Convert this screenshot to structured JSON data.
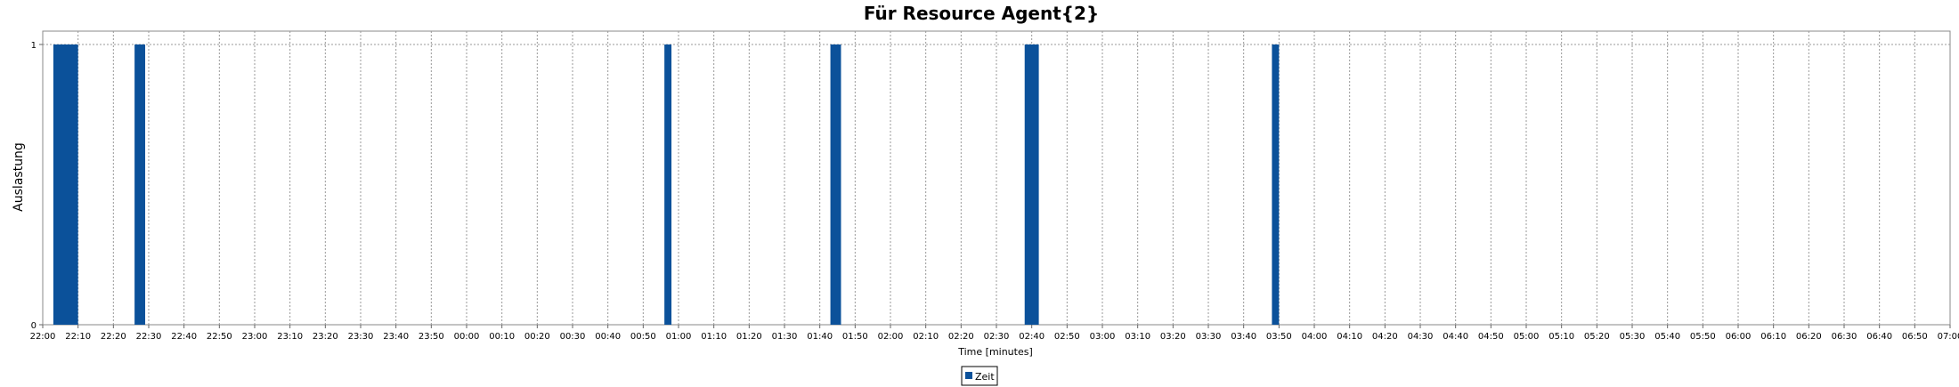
{
  "chart_data": {
    "type": "bar",
    "title": "Für Resource Agent{2}",
    "xlabel": "Time [minutes]",
    "ylabel": "Auslastung",
    "ylim": [
      0,
      1
    ],
    "yticks": [
      "0",
      "1"
    ],
    "x_range_minutes": [
      0,
      540
    ],
    "x_start_time": "22:00",
    "x_tick_labels": [
      "22:00",
      "22:10",
      "22:20",
      "22:30",
      "22:40",
      "22:50",
      "23:00",
      "23:10",
      "23:20",
      "23:30",
      "23:40",
      "23:50",
      "00:00",
      "00:10",
      "00:20",
      "00:30",
      "00:40",
      "00:50",
      "01:00",
      "01:10",
      "01:20",
      "01:30",
      "01:40",
      "01:50",
      "02:00",
      "02:10",
      "02:20",
      "02:30",
      "02:40",
      "02:50",
      "03:00",
      "03:10",
      "03:20",
      "03:30",
      "03:40",
      "03:50",
      "04:00",
      "04:10",
      "04:20",
      "04:30",
      "04:40",
      "04:50",
      "05:00",
      "05:10",
      "05:20",
      "05:30",
      "05:40",
      "05:50",
      "06:00",
      "06:10",
      "06:20",
      "06:30",
      "06:40",
      "06:50",
      "07:00"
    ],
    "grid": true,
    "legend_position": "bottom",
    "series": [
      {
        "name": "Zeit",
        "color": "#0b519a",
        "bars": [
          {
            "start": "22:03",
            "end": "22:10",
            "value": 1
          },
          {
            "start": "22:26",
            "end": "22:29",
            "value": 1
          },
          {
            "start": "00:56",
            "end": "00:58",
            "value": 1
          },
          {
            "start": "01:43",
            "end": "01:46",
            "value": 1
          },
          {
            "start": "02:38",
            "end": "02:42",
            "value": 1
          },
          {
            "start": "03:48",
            "end": "03:50",
            "value": 1
          }
        ]
      }
    ]
  }
}
